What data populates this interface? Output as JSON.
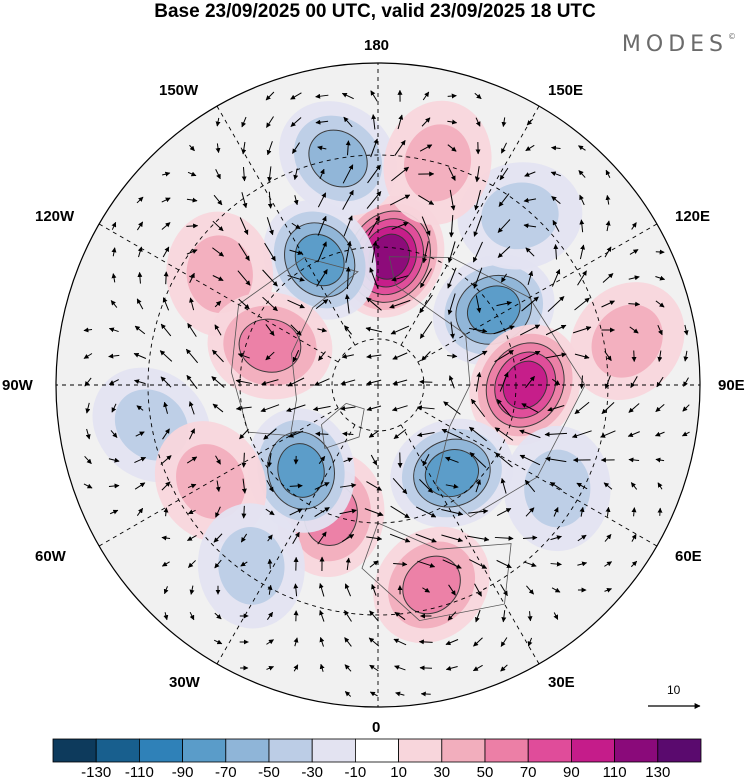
{
  "title": "Base 23/09/2025 00 UTC, valid 23/09/2025 18 UTC",
  "brand": "MODES",
  "brand_mark": "©",
  "longitude_labels": {
    "top": "180",
    "bottom": "0",
    "left": "90W",
    "right": "90E",
    "upper_left_1": "150W",
    "upper_left_2": "120W",
    "lower_left_1": "60W",
    "lower_left_2": "30W",
    "upper_right_1": "150E",
    "upper_right_2": "120E",
    "lower_right_1": "60E",
    "lower_right_2": "30E"
  },
  "vector_reference": {
    "value": "10"
  },
  "colorbar": {
    "ticks": [
      "-130",
      "-110",
      "-90",
      "-70",
      "-50",
      "-30",
      "-10",
      "10",
      "30",
      "50",
      "70",
      "90",
      "110",
      "130"
    ],
    "colors": [
      "#0d3a5c",
      "#185f8e",
      "#2f81b8",
      "#5a9cc9",
      "#8fb5d8",
      "#bccde6",
      "#e3e3f1",
      "#ffffff",
      "#f8d6dc",
      "#f2aebd",
      "#ec7fa6",
      "#e04c9a",
      "#c51c8a",
      "#8a0a7a",
      "#5a0a6e"
    ]
  },
  "anomaly_centers": [
    {
      "lon": 175,
      "colat": 28,
      "value": 110
    },
    {
      "lon": 123,
      "colat": 30,
      "value": -70
    },
    {
      "lon": 90,
      "colat": 32,
      "value": 80
    },
    {
      "lon": 40,
      "colat": 25,
      "value": -70
    },
    {
      "lon": 15,
      "colat": 45,
      "value": 40
    },
    {
      "lon": -20,
      "colat": 30,
      "value": 40
    },
    {
      "lon": -42,
      "colat": 25,
      "value": -60
    },
    {
      "lon": -155,
      "colat": 30,
      "value": -70
    },
    {
      "lon": -170,
      "colat": 50,
      "value": -40
    },
    {
      "lon": -125,
      "colat": 42,
      "value": 30
    },
    {
      "lon": -110,
      "colat": 25,
      "value": 40
    },
    {
      "lon": -80,
      "colat": 50,
      "value": -30
    },
    {
      "lon": -60,
      "colat": 42,
      "value": 30
    },
    {
      "lon": 140,
      "colat": 48,
      "value": -20
    },
    {
      "lon": 60,
      "colat": 45,
      "value": -20
    },
    {
      "lon": -35,
      "colat": 48,
      "value": -20
    },
    {
      "lon": 165,
      "colat": 50,
      "value": 20
    },
    {
      "lon": 100,
      "colat": 55,
      "value": 20
    }
  ]
}
